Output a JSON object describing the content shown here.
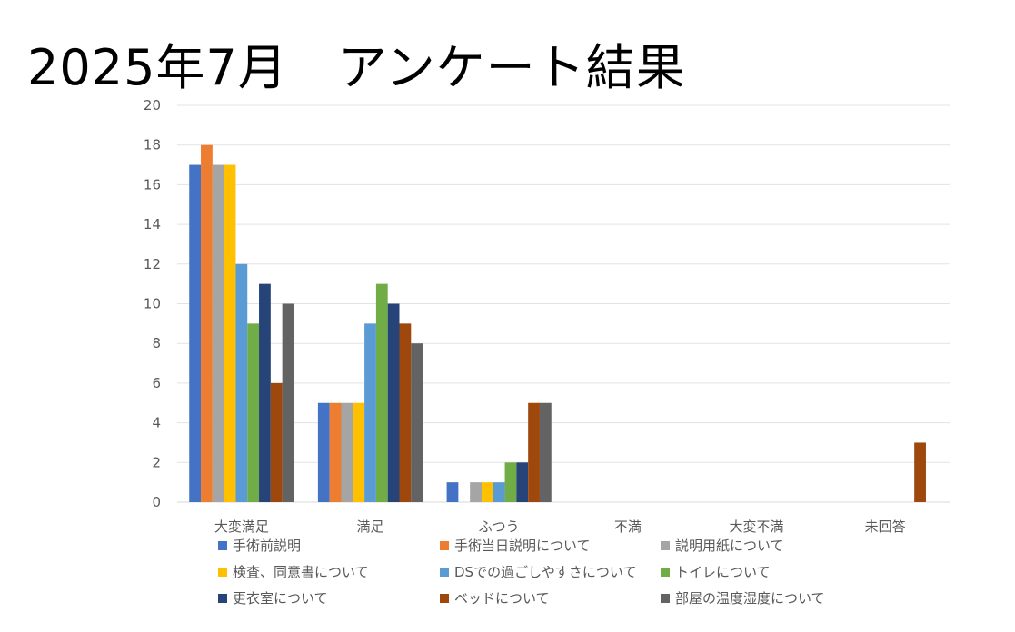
{
  "title": "2025年7月　アンケート結果",
  "chart_data": {
    "type": "bar",
    "categories": [
      "大変満足",
      "満足",
      "ふつう",
      "不満",
      "大変不満",
      "未回答"
    ],
    "ylim": [
      0,
      20
    ],
    "yticks": [
      0,
      2,
      4,
      6,
      8,
      10,
      12,
      14,
      16,
      18,
      20
    ],
    "grid": true,
    "legend_position": "bottom",
    "series": [
      {
        "name": "手術前説明",
        "color": "#4472C4",
        "values": [
          17,
          5,
          1,
          0,
          0,
          0
        ]
      },
      {
        "name": "手術当日説明について",
        "color": "#ED7D31",
        "values": [
          18,
          5,
          0,
          0,
          0,
          0
        ]
      },
      {
        "name": "説明用紙について",
        "color": "#A5A5A5",
        "values": [
          17,
          5,
          1,
          0,
          0,
          0
        ]
      },
      {
        "name": "検査、同意書について",
        "color": "#FFC000",
        "values": [
          17,
          5,
          1,
          0,
          0,
          0
        ]
      },
      {
        "name": "DSでの過ごしやすさについて",
        "color": "#5B9BD5",
        "values": [
          12,
          9,
          1,
          0,
          0,
          0
        ]
      },
      {
        "name": "トイレについて",
        "color": "#70AD47",
        "values": [
          9,
          11,
          2,
          0,
          0,
          0
        ]
      },
      {
        "name": "更衣室について",
        "color": "#264478",
        "values": [
          11,
          10,
          2,
          0,
          0,
          0
        ]
      },
      {
        "name": "ベッドについて",
        "color": "#9E480E",
        "values": [
          6,
          9,
          5,
          0,
          0,
          3
        ]
      },
      {
        "name": "部屋の温度湿度について",
        "color": "#636363",
        "values": [
          10,
          8,
          5,
          0,
          0,
          0
        ]
      }
    ]
  }
}
